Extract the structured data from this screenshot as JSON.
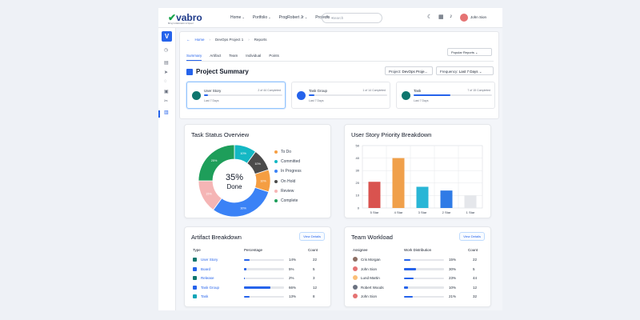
{
  "header": {
    "logo_text": "vabro",
    "logo_tagline": "Bring Collaboration & Speed",
    "nav": [
      "Home",
      "Portfolio",
      "ProgRobert Jr",
      "Projects"
    ],
    "search_placeholder": "Search",
    "user_name": "John Sion"
  },
  "breadcrumb": [
    "Home",
    "DevOps Project 1",
    "Reports"
  ],
  "popular_reports_label": "Popular Reports",
  "tabs": [
    "Summary",
    "Artifact",
    "Team",
    "Individual",
    "Points"
  ],
  "active_tab": "Summary",
  "page_title": "Project Summary",
  "filters": {
    "project_label": "Project:",
    "project_value": "DevOps Proje...",
    "frequency_label": "Frequency:",
    "frequency_value": "Last 7 Days"
  },
  "summary_cards": [
    {
      "name": "User Story",
      "count": "2 of 44 Completed",
      "progress": 0.05,
      "range": "Last 7 Days",
      "color": "#0f766e"
    },
    {
      "name": "Task Group",
      "count": "1 of 14 Completed",
      "progress": 0.07,
      "range": "Last 7 Days",
      "color": "#2563eb"
    },
    {
      "name": "Task",
      "count": "7 of 15 Completed",
      "progress": 0.47,
      "range": "Last 7 Days",
      "color": "#0f766e"
    }
  ],
  "task_status": {
    "title": "Task Status Overview",
    "center_value": "35%",
    "center_label": "Done",
    "segments": [
      {
        "name": "To Do",
        "value": 10,
        "label": "10%",
        "color": "#f59e42"
      },
      {
        "name": "Committed",
        "value": 10,
        "label": "10%",
        "color": "#14b8c4"
      },
      {
        "name": "In Progress",
        "value": 30,
        "label": "30%",
        "color": "#3b82f6"
      },
      {
        "name": "On Hold",
        "value": 10,
        "label": "10%",
        "color": "#4b4b4b"
      },
      {
        "name": "Review",
        "value": 15,
        "label": "15%",
        "color": "#f5b5b5"
      },
      {
        "name": "Complete",
        "value": 25,
        "label": "25%",
        "color": "#1e9e5a"
      }
    ],
    "draw_order": [
      "Committed",
      "On Hold",
      "To Do",
      "In Progress",
      "Review",
      "Complete"
    ],
    "legend_order": [
      "To Do",
      "Committed",
      "In Progress",
      "On Hold",
      "Review",
      "Complete"
    ]
  },
  "chart_data": {
    "type": "bar",
    "title": "User Story Priority Breakdown",
    "categories": [
      "5 Star",
      "4 Star",
      "3 Star",
      "2 Star",
      "1 Star"
    ],
    "values": [
      21,
      40,
      17,
      14,
      10
    ],
    "colors": [
      "#d9534f",
      "#f0a04b",
      "#29b6d6",
      "#2f7be6",
      "#e5e7eb"
    ],
    "ylim": [
      0,
      50
    ],
    "yticks": [
      0,
      10,
      20,
      30,
      40,
      50
    ],
    "grid": true
  },
  "artifact": {
    "title": "Artifact Breakdown",
    "view_label": "View Details",
    "columns": [
      "Type",
      "Percentage",
      "Count"
    ],
    "rows": [
      {
        "type": "User Story",
        "pct": 0.14,
        "pct_label": "14%",
        "count": "22",
        "color": "#0f766e"
      },
      {
        "type": "Board",
        "pct": 0.05,
        "pct_label": "5%",
        "count": "5",
        "color": "#2563eb"
      },
      {
        "type": "Release",
        "pct": 0.02,
        "pct_label": "2%",
        "count": "3",
        "color": "#0f766e"
      },
      {
        "type": "Task Group",
        "pct": 0.66,
        "pct_label": "66%",
        "count": "12",
        "color": "#2563eb"
      },
      {
        "type": "Task",
        "pct": 0.13,
        "pct_label": "13%",
        "count": "8",
        "color": "#0ea5b7"
      }
    ]
  },
  "team": {
    "title": "Team Workload",
    "view_label": "View Details",
    "columns": [
      "Assignee",
      "Work Distribution",
      "Count"
    ],
    "rows": [
      {
        "name": "Cris Morgan",
        "pct": 0.15,
        "pct_label": "15%",
        "count": "22",
        "color": "#8d6e63"
      },
      {
        "name": "John Sion",
        "pct": 0.3,
        "pct_label": "30%",
        "count": "5",
        "color": "#e57373"
      },
      {
        "name": "Lund Martin",
        "pct": 0.23,
        "pct_label": "23%",
        "count": "44",
        "color": "#fbbf77"
      },
      {
        "name": "Robert Woods",
        "pct": 0.1,
        "pct_label": "10%",
        "count": "12",
        "color": "#6b7280"
      },
      {
        "name": "John Sion",
        "pct": 0.21,
        "pct_label": "21%",
        "count": "32",
        "color": "#e57373"
      }
    ]
  }
}
